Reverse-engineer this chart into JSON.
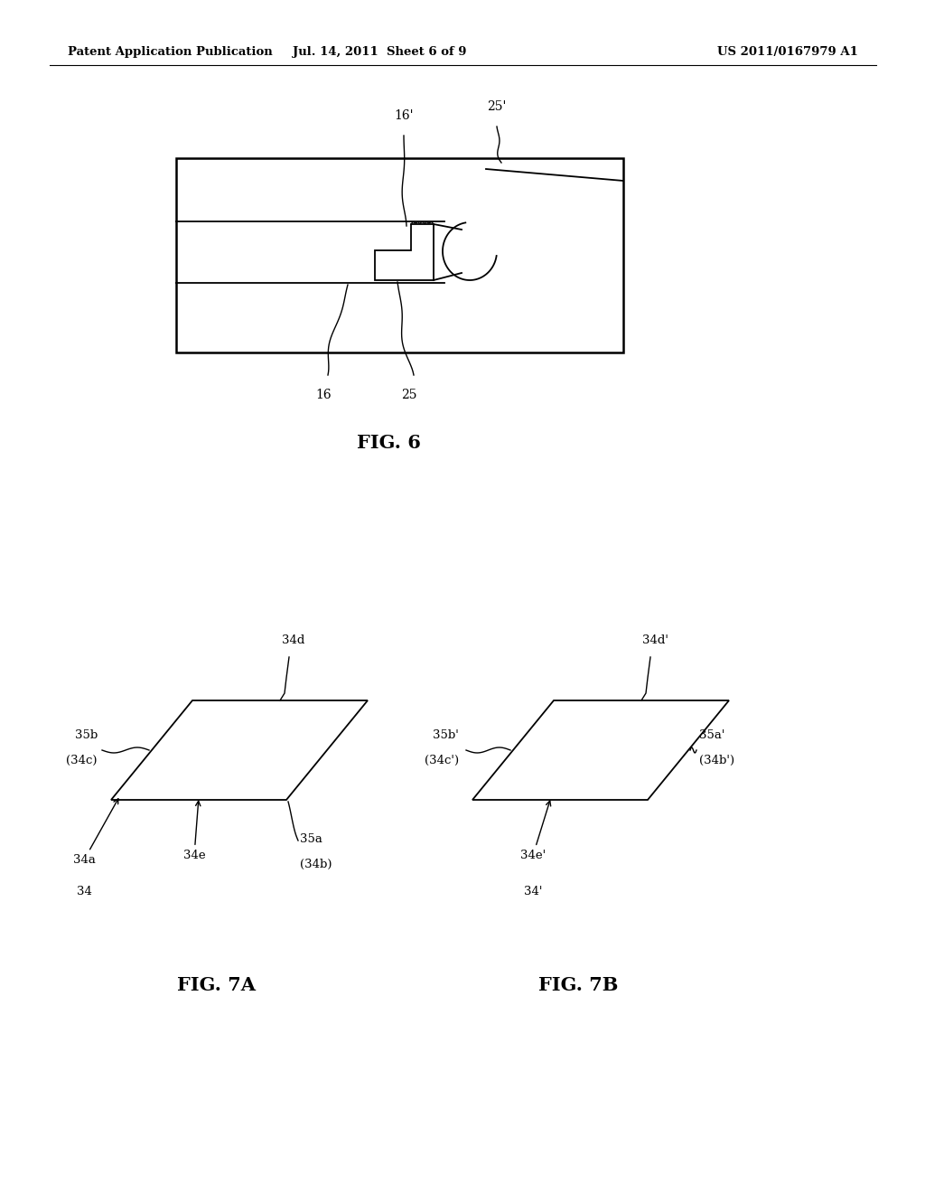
{
  "bg_color": "#ffffff",
  "header_left": "Patent Application Publication",
  "header_mid": "Jul. 14, 2011  Sheet 6 of 9",
  "header_right": "US 2011/0167979 A1",
  "fig6_label": "FIG. 6",
  "fig7a_label": "FIG. 7A",
  "fig7b_label": "FIG. 7B"
}
